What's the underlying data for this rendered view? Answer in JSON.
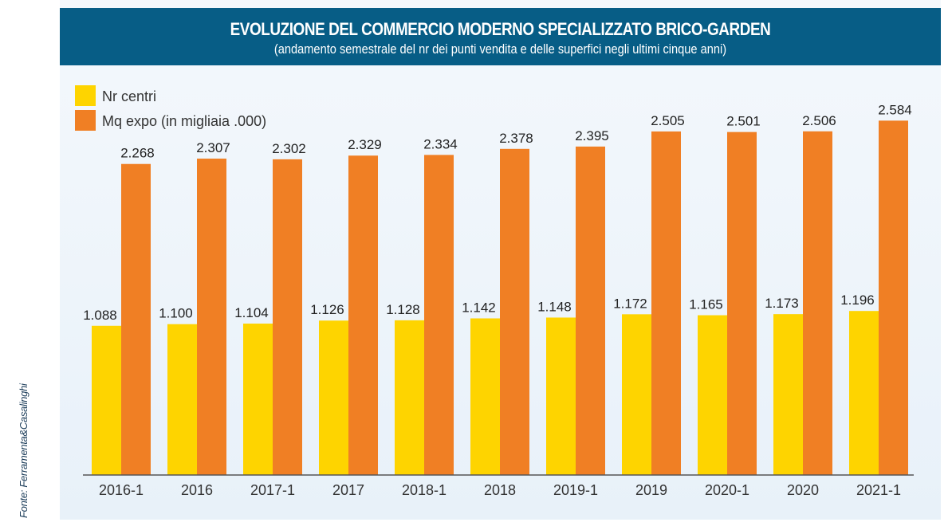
{
  "header": {
    "title": "EVOLUZIONE DEL COMMERCIO MODERNO SPECIALIZZATO BRICO-GARDEN",
    "subtitle": "(andamento semestrale del nr dei punti vendita e delle superfici negli ultimi cinque anni)"
  },
  "source": "Fonte: Ferramenta&Casalinghi",
  "colors": {
    "header_bg": "#075d86",
    "series_centri": "#fed400",
    "series_mq": "#f07f24"
  },
  "chart_data": {
    "type": "bar",
    "title": "EVOLUZIONE DEL COMMERCIO MODERNO SPECIALIZZATO BRICO-GARDEN",
    "subtitle": "(andamento semestrale del nr dei punti vendita e delle superfici negli ultimi cinque anni)",
    "xlabel": "",
    "ylabel": "",
    "legend_position": "top-left",
    "grid": false,
    "ylim": [
      0,
      2650
    ],
    "categories": [
      "2016-1",
      "2016",
      "2017-1",
      "2017",
      "2018-1",
      "2018",
      "2019-1",
      "2019",
      "2020-1",
      "2020",
      "2021-1"
    ],
    "series": [
      {
        "name": "Nr centri",
        "color": "#fed400",
        "values": [
          1088,
          1100,
          1104,
          1126,
          1128,
          1142,
          1148,
          1172,
          1165,
          1173,
          1196
        ],
        "labels": [
          "1.088",
          "1.100",
          "1.104",
          "1.126",
          "1.128",
          "1.142",
          "1.148",
          "1.172",
          "1.165",
          "1.173",
          "1.196"
        ]
      },
      {
        "name": "Mq expo (in migliaia .000)",
        "color": "#f07f24",
        "values": [
          2268,
          2307,
          2302,
          2329,
          2334,
          2378,
          2395,
          2505,
          2501,
          2506,
          2584
        ],
        "labels": [
          "2.268",
          "2.307",
          "2.302",
          "2.329",
          "2.334",
          "2.378",
          "2.395",
          "2.505",
          "2.501",
          "2.506",
          "2.584"
        ]
      }
    ]
  }
}
